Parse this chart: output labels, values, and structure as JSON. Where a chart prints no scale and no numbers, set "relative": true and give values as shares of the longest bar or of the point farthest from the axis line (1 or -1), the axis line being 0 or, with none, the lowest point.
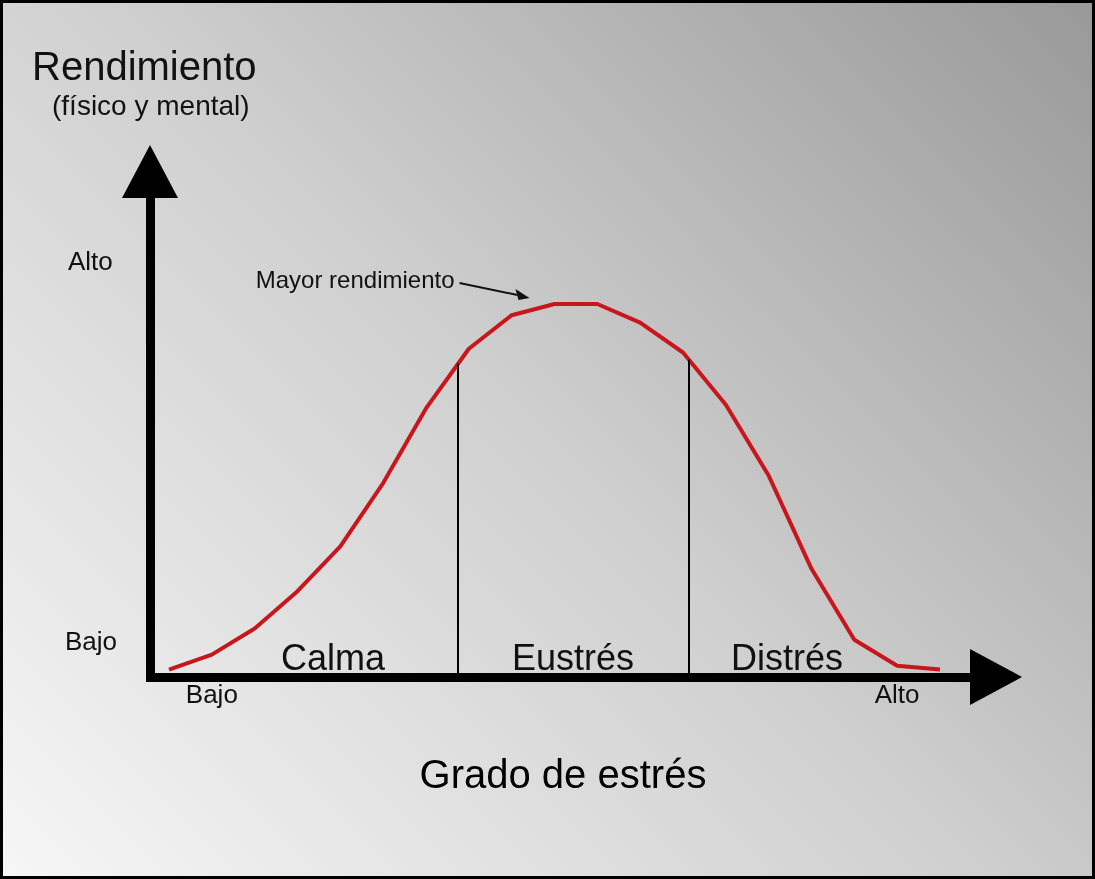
{
  "chart_data": {
    "type": "line",
    "xlabel": "Grado de estrés",
    "marker": "none",
    "relative": true,
    "categories": [
      null,
      "Bajo",
      null,
      null,
      null,
      null,
      null,
      null,
      null,
      null,
      null,
      null,
      null,
      null,
      null,
      null,
      null,
      "Alto",
      null
    ],
    "values": [
      0.02,
      0.06,
      0.13,
      0.23,
      0.35,
      0.52,
      0.72,
      0.88,
      0.97,
      1,
      1,
      0.95,
      0.87,
      0.73,
      0.54,
      0.29,
      0.1,
      0.03,
      0.02
    ],
    "color": "#c8161d",
    "annotations": [
      "Rendimiento",
      "(físico y mental)",
      "Alto",
      "Bajo",
      "Mayor rendimiento",
      "Calma",
      "Eustrés",
      "Distrés"
    ]
  }
}
